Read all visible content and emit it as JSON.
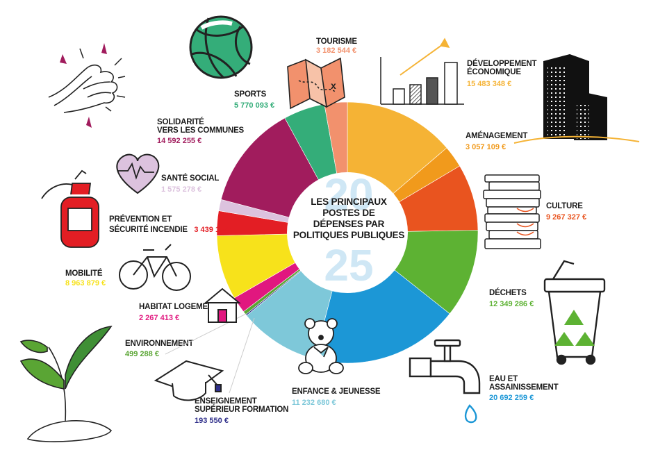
{
  "chart_data": {
    "type": "pie",
    "title": "LES PRINCIPAUX POSTES DE DÉPENSES PAR POLITIQUES PUBLIQUES",
    "year_top": "20",
    "year_bottom": "25",
    "slices": [
      {
        "name": "DÉVELOPPEMENT ÉCONOMIQUE",
        "value": 15483348,
        "label": "15 483 348 €",
        "color": "#f5b335"
      },
      {
        "name": "AMÉNAGEMENT",
        "value": 3057109,
        "label": "3 057 109 €",
        "color": "#f19a1c"
      },
      {
        "name": "CULTURE",
        "value": 9267327,
        "label": "9 267 327 €",
        "color": "#e9541f"
      },
      {
        "name": "DÉCHETS",
        "value": 12349286,
        "label": "12 349 286 €",
        "color": "#5db233"
      },
      {
        "name": "EAU ET ASSAINISSEMENT",
        "value": 20692259,
        "label": "20 692 259 €",
        "color": "#1c97d6"
      },
      {
        "name": "ENFANCE & JEUNESSE",
        "value": 11232680,
        "label": "11 232 680 €",
        "color": "#7ec8d9"
      },
      {
        "name": "ENSEIGNEMENT SUPÉRIEUR FORMATION",
        "value": 193550,
        "label": "193 550 €",
        "color": "#2f2f8a"
      },
      {
        "name": "ENVIRONNEMENT",
        "value": 499288,
        "label": "499 288 €",
        "color": "#5aa534"
      },
      {
        "name": "HABITAT LOGEMENT",
        "value": 2267413,
        "label": "2 267 413 €",
        "color": "#e1177f"
      },
      {
        "name": "MOBILITÉ",
        "value": 8963879,
        "label": "8 963 879 €",
        "color": "#f7e21b"
      },
      {
        "name": "PRÉVENTION ET SÉCURITÉ INCENDIE",
        "value": 3439182,
        "label": "3 439 182 €",
        "color": "#e31e24"
      },
      {
        "name": "SANTÉ SOCIAL",
        "value": 1575278,
        "label": "1 575 278 €",
        "color": "#dcc2de"
      },
      {
        "name": "SOLIDARITÉ VERS LES COMMUNES",
        "value": 14592255,
        "label": "14 592 255 €",
        "color": "#a11c5d"
      },
      {
        "name": "SPORTS",
        "value": 5770093,
        "label": "5 770 093 €",
        "color": "#34ad79"
      },
      {
        "name": "TOURISME",
        "value": 3182544,
        "label": "3 182 544 €",
        "color": "#f2916d"
      }
    ]
  },
  "labels": {
    "tourisme": {
      "line1": "TOURISME",
      "value": "3 182 544 €",
      "color": "#f2916d"
    },
    "dev_eco": {
      "line1": "DÉVELOPPEMENT",
      "line2": "ÉCONOMIQUE",
      "value": "15 483 348 €",
      "color": "#f5b335"
    },
    "amenagement": {
      "line1": "AMÉNAGEMENT",
      "value": "3 057 109 €",
      "color": "#f19a1c"
    },
    "culture": {
      "line1": "CULTURE",
      "value": "9 267 327 €",
      "color": "#e9541f"
    },
    "dechets": {
      "line1": "DÉCHETS",
      "value": "12 349 286 €",
      "color": "#5db233"
    },
    "eau": {
      "line1": "EAU ET",
      "line2": "ASSAINISSEMENT",
      "value": "20 692 259 €",
      "color": "#1c97d6"
    },
    "enfance": {
      "line1": "ENFANCE & JEUNESSE",
      "value": "11 232 680 €",
      "color": "#7ec8d9"
    },
    "enseignement": {
      "line1": "ENSEIGNEMENT",
      "line2": "SUPÉRIEUR FORMATION",
      "value": "193 550 €",
      "color": "#2f2f8a"
    },
    "environnement": {
      "line1": "ENVIRONNEMENT",
      "value": "499 288 €",
      "color": "#5aa534"
    },
    "habitat": {
      "line1": "HABITAT LOGEMENT",
      "value": "2 267 413 €",
      "color": "#e1177f"
    },
    "mobilite": {
      "line1": "MOBILITÉ",
      "value": "8 963 879 €",
      "color": "#f7e21b"
    },
    "prevention": {
      "line1": "PRÉVENTION ET",
      "line2": "SÉCURITÉ INCENDIE",
      "value": "3 439 182 €",
      "color": "#e31e24"
    },
    "sante": {
      "line1": "SANTÉ SOCIAL",
      "value": "1 575 278 €",
      "color": "#dcc2de"
    },
    "solidarite": {
      "line1": "SOLIDARITÉ",
      "line2": "VERS LES COMMUNES",
      "value": "14 592 255 €",
      "color": "#a11c5d"
    },
    "sports": {
      "line1": "SPORTS",
      "value": "5 770 093 €",
      "color": "#34ad79"
    }
  },
  "center": {
    "line1": "LES PRINCIPAUX",
    "line2": "POSTES DE",
    "line3": "DÉPENSES PAR",
    "line4": "POLITIQUES PUBLIQUES"
  },
  "icons": [
    "clapping-hands-icon",
    "basketball-icon",
    "map-icon",
    "bar-chart-growth-icon",
    "buildings-icon",
    "heart-pulse-icon",
    "fire-extinguisher-icon",
    "books-icon",
    "bicycle-icon",
    "house-icon",
    "recycle-bin-icon",
    "plant-icon",
    "teddy-bear-icon",
    "graduation-cap-icon",
    "water-tap-icon"
  ]
}
